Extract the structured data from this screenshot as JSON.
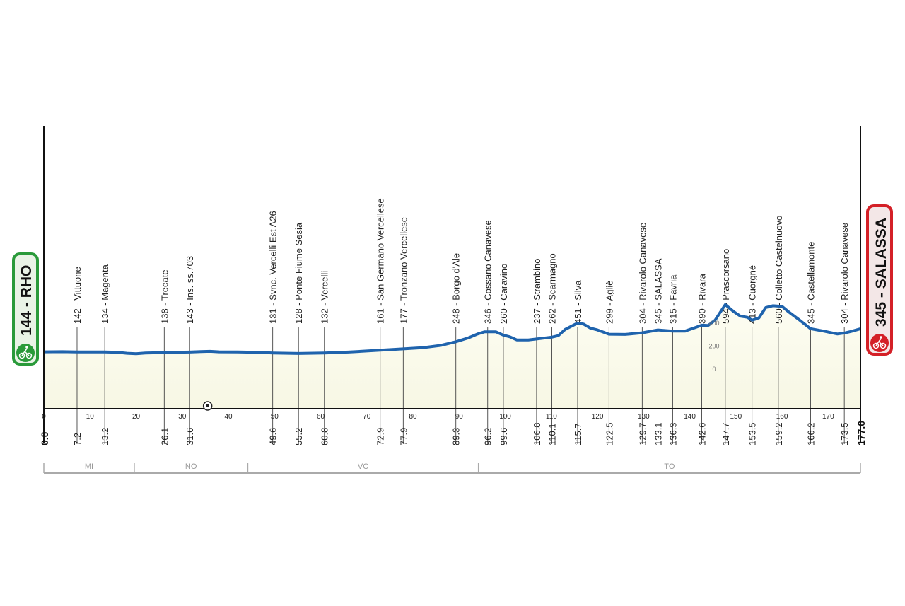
{
  "chart_data": {
    "type": "area",
    "title": "",
    "xlabel": "",
    "ylabel": "",
    "xlim": [
      0,
      177
    ],
    "x_ticks": [
      0,
      10,
      20,
      30,
      40,
      50,
      60,
      70,
      80,
      90,
      100,
      110,
      120,
      130,
      140,
      150,
      160,
      170
    ],
    "y_ticks": [
      0,
      200,
      400
    ],
    "grid": true,
    "colors": {
      "line": "#1f63ad",
      "fill": "#f7f7e4",
      "start": "#2a9a3a",
      "finish": "#d42027"
    },
    "start": {
      "label": "144 - RHO",
      "km": "0.0"
    },
    "finish": {
      "label": "345 - SALASSA",
      "km": "177.0"
    },
    "profile": [
      [
        0,
        144
      ],
      [
        4,
        145
      ],
      [
        7.2,
        143
      ],
      [
        13.2,
        143
      ],
      [
        16,
        140
      ],
      [
        18,
        132
      ],
      [
        20,
        128
      ],
      [
        22,
        134
      ],
      [
        26.1,
        138
      ],
      [
        31.6,
        142
      ],
      [
        34,
        146
      ],
      [
        36,
        148
      ],
      [
        38,
        144
      ],
      [
        42,
        143
      ],
      [
        46,
        140
      ],
      [
        49.6,
        134
      ],
      [
        55.2,
        130
      ],
      [
        60.8,
        134
      ],
      [
        66,
        142
      ],
      [
        72.9,
        158
      ],
      [
        77.9,
        170
      ],
      [
        82,
        180
      ],
      [
        86,
        200
      ],
      [
        89.3,
        232
      ],
      [
        92,
        265
      ],
      [
        94,
        300
      ],
      [
        95.5,
        318
      ],
      [
        98,
        318
      ],
      [
        99.6,
        290
      ],
      [
        101,
        275
      ],
      [
        102.5,
        248
      ],
      [
        105,
        248
      ],
      [
        106.8,
        256
      ],
      [
        110.1,
        272
      ],
      [
        111.5,
        285
      ],
      [
        113,
        340
      ],
      [
        115.7,
        395
      ],
      [
        117,
        385
      ],
      [
        118.5,
        350
      ],
      [
        120,
        335
      ],
      [
        122.5,
        298
      ],
      [
        126,
        296
      ],
      [
        129.7,
        310
      ],
      [
        133.1,
        335
      ],
      [
        136.3,
        325
      ],
      [
        139,
        325
      ],
      [
        141.5,
        360
      ],
      [
        142.6,
        376
      ],
      [
        144,
        374
      ],
      [
        145.5,
        420
      ],
      [
        147.7,
        555
      ],
      [
        149.5,
        495
      ],
      [
        151,
        455
      ],
      [
        152.5,
        445
      ],
      [
        153.5,
        420
      ],
      [
        155,
        440
      ],
      [
        156.5,
        530
      ],
      [
        158,
        545
      ],
      [
        160,
        540
      ],
      [
        161.5,
        490
      ],
      [
        163.5,
        430
      ],
      [
        166.2,
        345
      ],
      [
        169,
        325
      ],
      [
        172,
        300
      ],
      [
        173.5,
        308
      ],
      [
        175,
        322
      ],
      [
        177,
        345
      ]
    ],
    "waypoints": [
      {
        "km": "7.2",
        "label": "142 - Vittuone"
      },
      {
        "km": "13.2",
        "label": "134 - Magenta"
      },
      {
        "km": "26.1",
        "label": "138 - Trecate"
      },
      {
        "km": "31.6",
        "label": "143 - Ins. ss.703"
      },
      {
        "km": "49.6",
        "label": "131 - Svnc. Vercelli Est A26"
      },
      {
        "km": "55.2",
        "label": "128 - Ponte Fiume Sesia"
      },
      {
        "km": "60.8",
        "label": "132 - Vercelli"
      },
      {
        "km": "72.9",
        "label": "161 - San Germano Vercellese"
      },
      {
        "km": "77.9",
        "label": "177 - Tronzano Vercellese"
      },
      {
        "km": "89.3",
        "label": "248 - Borgo d'Ale"
      },
      {
        "km": "96.2",
        "label": "346 - Cossano Canavese"
      },
      {
        "km": "99.6",
        "label": "260 - Caravino"
      },
      {
        "km": "106.8",
        "label": "237 - Strambino"
      },
      {
        "km": "110.1",
        "label": "262 - Scarmagno"
      },
      {
        "km": "115.7",
        "label": "451 - Silva"
      },
      {
        "km": "122.5",
        "label": "299 - Agliè"
      },
      {
        "km": "129.7",
        "label": "304 - Rivarolo Canavese"
      },
      {
        "km": "133.1",
        "label": "345 - SALASSA"
      },
      {
        "km": "136.3",
        "label": "315 - Favria"
      },
      {
        "km": "142.6",
        "label": "390 - Rivara"
      },
      {
        "km": "147.7",
        "label": "594 - Prascorsano"
      },
      {
        "km": "153.5",
        "label": "413 - Cuorgnè"
      },
      {
        "km": "159.2",
        "label": "560 - Colletto Castelnuovo"
      },
      {
        "km": "166.2",
        "label": "345 - Castellamonte"
      },
      {
        "km": "173.5",
        "label": "304 - Rivarolo Canavese"
      }
    ],
    "tunnel_km": 35.5,
    "provinces": [
      {
        "label": "MI",
        "from": 0,
        "to": 19.6
      },
      {
        "label": "NO",
        "from": 19.6,
        "to": 44.2
      },
      {
        "label": "VC",
        "from": 44.2,
        "to": 94.2
      },
      {
        "label": "TO",
        "from": 94.2,
        "to": 177
      }
    ]
  }
}
